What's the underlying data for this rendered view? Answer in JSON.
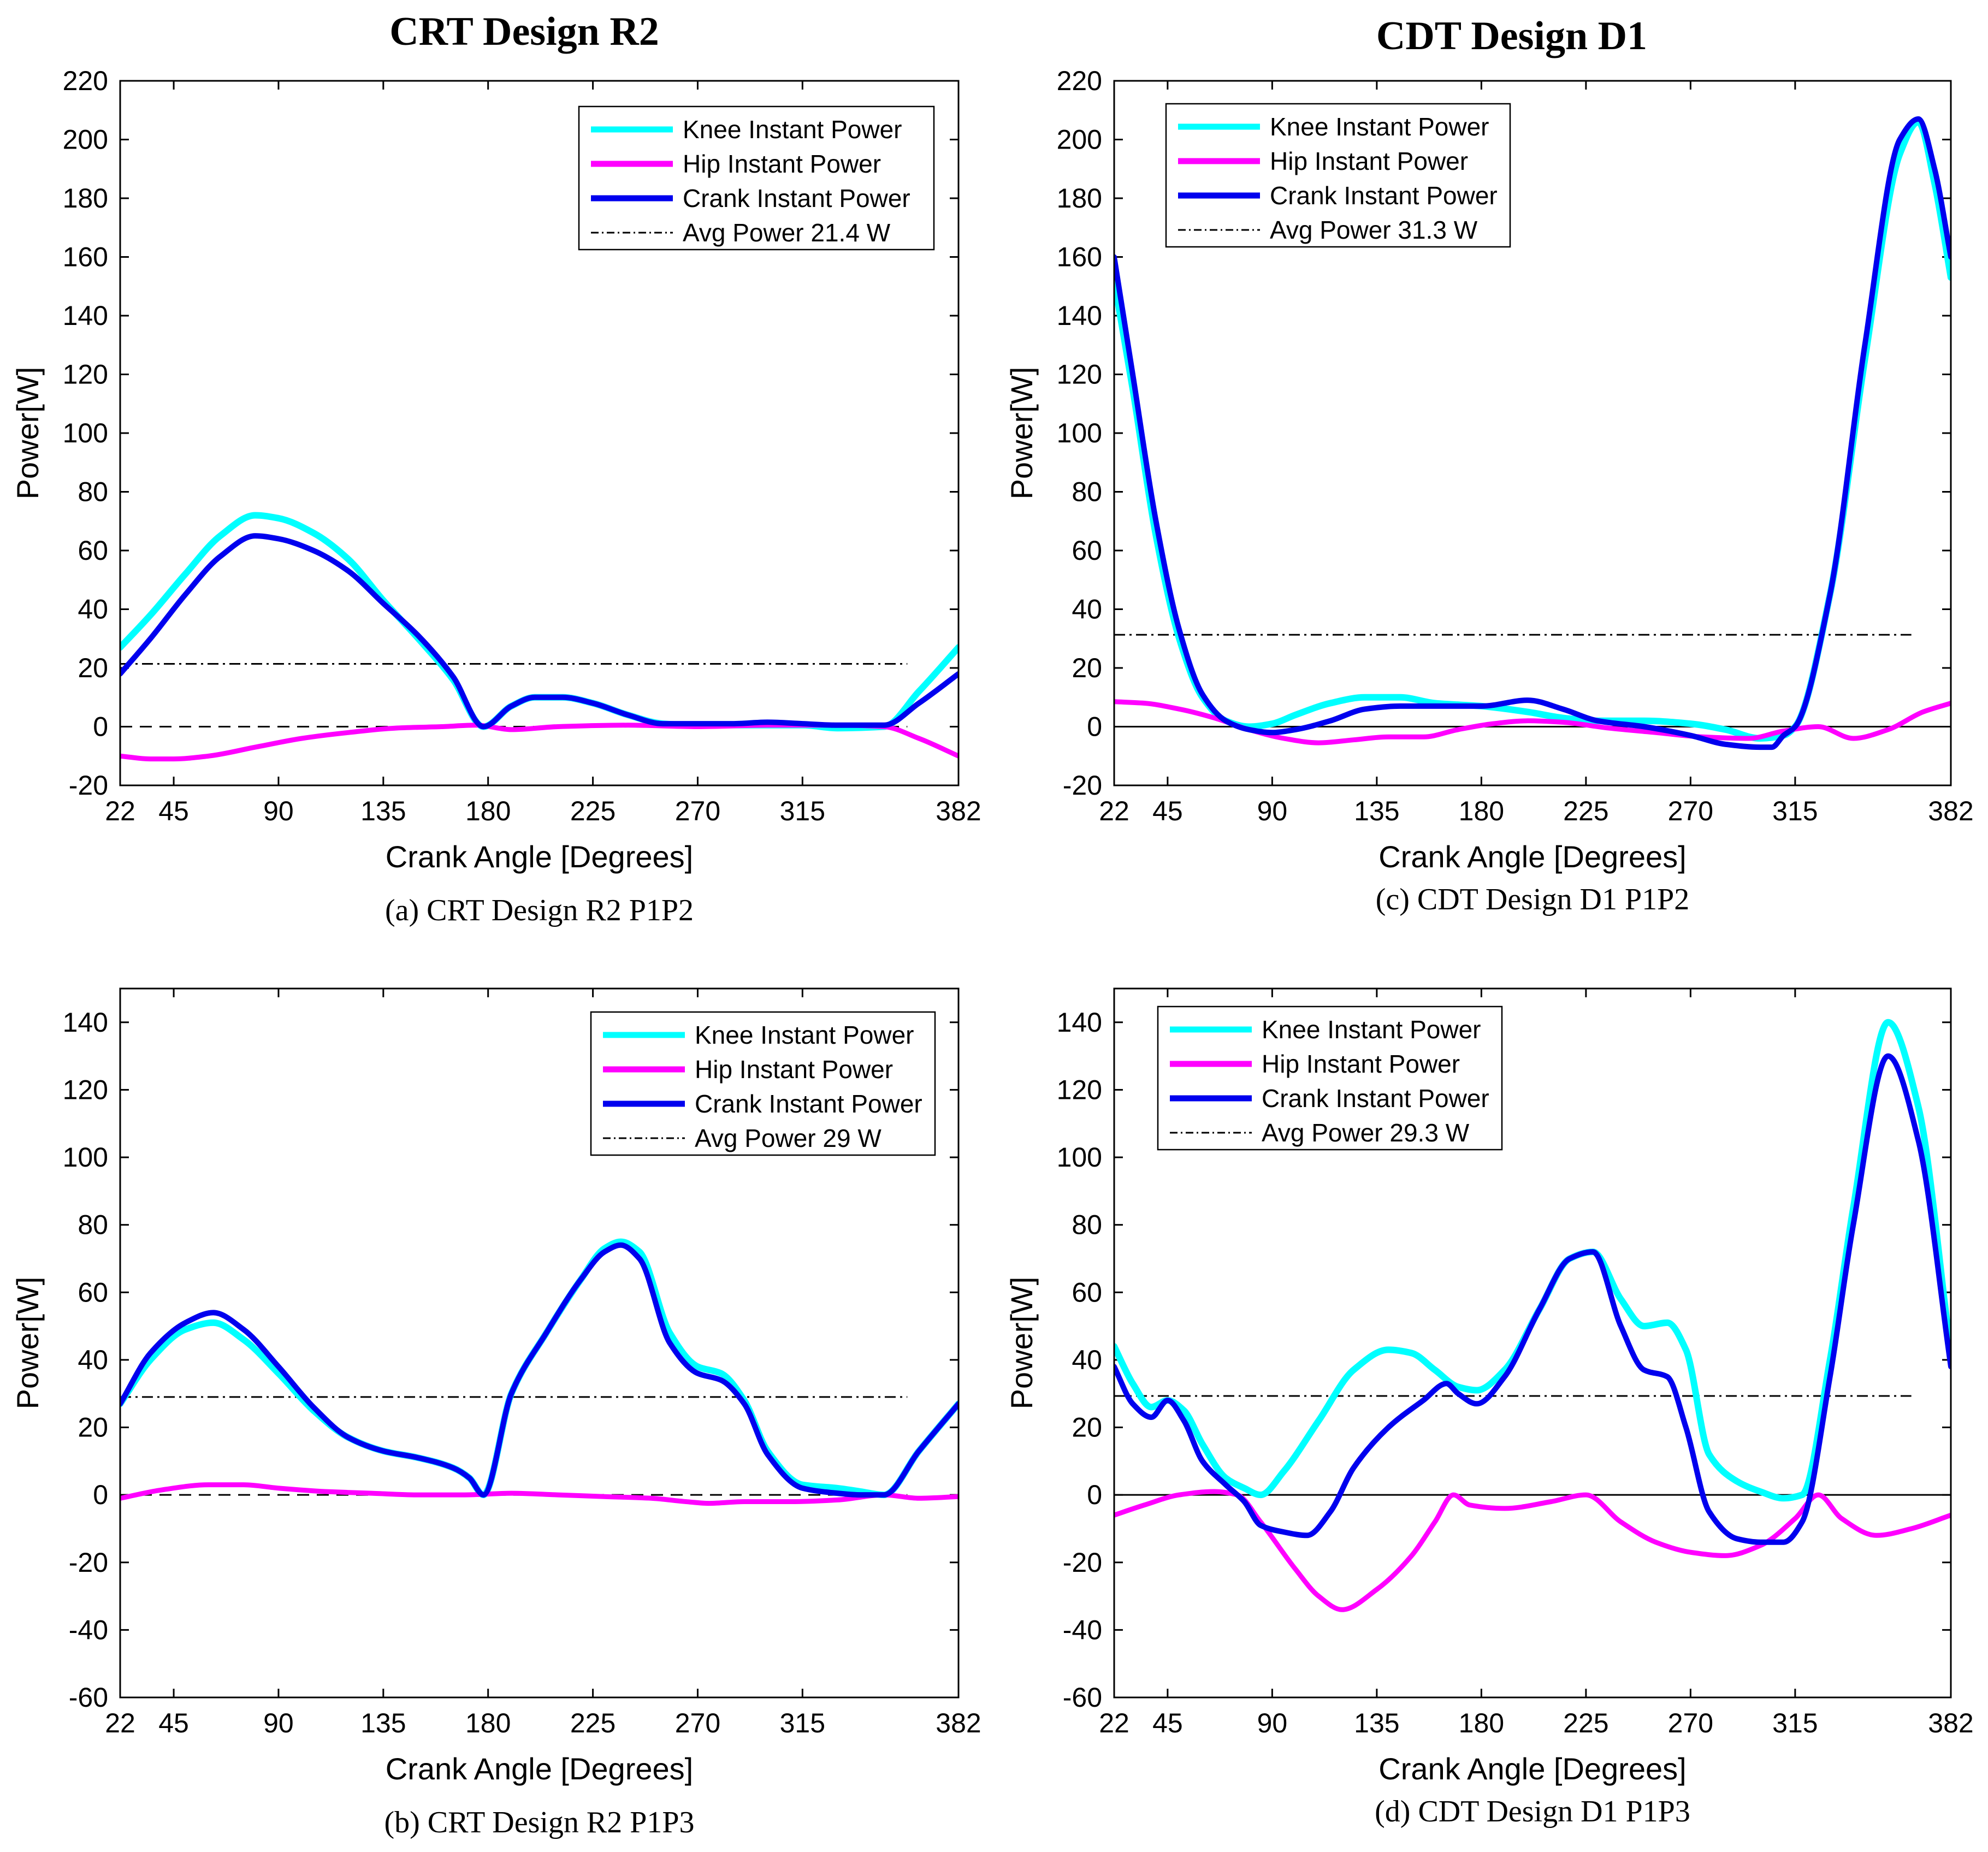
{
  "figure": {
    "column_titles": [
      "CRT Design R2",
      "CDT Design D1"
    ]
  },
  "chart_data": [
    {
      "type": "line",
      "panel": "a",
      "caption": "(a) CRT Design R2 P1P2",
      "xlabel": "Crank Angle [Degrees]",
      "ylabel": "Power[W]",
      "xlim": [
        22,
        382
      ],
      "ylim": [
        -20,
        220
      ],
      "xticks": [
        22,
        45,
        90,
        135,
        180,
        225,
        270,
        315,
        382
      ],
      "yticks": [
        -20,
        0,
        20,
        40,
        60,
        80,
        100,
        120,
        140,
        160,
        180,
        200,
        220
      ],
      "grid": false,
      "legend_position": "top-right",
      "zero_line": "dashed",
      "average": {
        "name": "Avg Power 21.4 W",
        "value": 21.4,
        "x_range": [
          22,
          360
        ]
      },
      "series": [
        {
          "name": "Knee Instant Power",
          "color": "#00ffff",
          "x": [
            22,
            35,
            50,
            65,
            80,
            90,
            105,
            120,
            135,
            150,
            165,
            178,
            190,
            200,
            212,
            225,
            240,
            255,
            270,
            285,
            300,
            315,
            330,
            350,
            365,
            382
          ],
          "y": [
            27,
            38,
            52,
            65,
            72,
            71,
            66,
            57,
            43,
            30,
            16,
            0,
            7,
            10,
            10,
            8,
            4,
            1,
            0.5,
            0.5,
            0.5,
            0.5,
            -0.5,
            0,
            12,
            27
          ]
        },
        {
          "name": "Hip Instant Power",
          "color": "#ff00ff",
          "x": [
            22,
            35,
            45,
            60,
            80,
            100,
            120,
            140,
            160,
            175,
            190,
            210,
            240,
            270,
            300,
            330,
            350,
            365,
            382
          ],
          "y": [
            -10,
            -11,
            -11,
            -10,
            -7,
            -4,
            -2,
            -0.5,
            0,
            0.5,
            -1,
            0,
            0.5,
            0,
            0.5,
            0.5,
            0,
            -4,
            -10
          ]
        },
        {
          "name": "Crank Instant Power",
          "color": "#0000ee",
          "x": [
            22,
            35,
            50,
            65,
            80,
            90,
            105,
            120,
            135,
            150,
            165,
            178,
            190,
            200,
            212,
            225,
            240,
            255,
            270,
            285,
            300,
            315,
            330,
            350,
            365,
            382
          ],
          "y": [
            18,
            30,
            45,
            58,
            65,
            64,
            60,
            53,
            42,
            31,
            17,
            0,
            7,
            10,
            10,
            8,
            4,
            1,
            1,
            1,
            1.5,
            1,
            0.5,
            0.5,
            8,
            18
          ]
        }
      ]
    },
    {
      "type": "line",
      "panel": "b",
      "caption": "(b) CRT Design R2 P1P3",
      "xlabel": "Crank Angle [Degrees]",
      "ylabel": "Power[W]",
      "xlim": [
        22,
        382
      ],
      "ylim": [
        -60,
        150
      ],
      "xticks": [
        22,
        45,
        90,
        135,
        180,
        225,
        270,
        315,
        382
      ],
      "yticks": [
        -60,
        -40,
        -20,
        0,
        20,
        40,
        60,
        80,
        100,
        120,
        140
      ],
      "grid": false,
      "legend_position": "top-right",
      "zero_line": "dashed",
      "average": {
        "name": "Avg Power 29 W",
        "value": 29,
        "x_range": [
          22,
          360
        ]
      },
      "series": [
        {
          "name": "Knee Instant Power",
          "color": "#00ffff",
          "x": [
            22,
            35,
            50,
            62,
            75,
            90,
            105,
            120,
            135,
            150,
            165,
            172,
            178,
            190,
            205,
            220,
            230,
            237,
            245,
            258,
            270,
            280,
            290,
            300,
            315,
            330,
            340,
            350,
            365,
            382
          ],
          "y": [
            27,
            40,
            49,
            51,
            46,
            36,
            25,
            17,
            13,
            11,
            8,
            5,
            0,
            30,
            48,
            64,
            73,
            75,
            72,
            48,
            38,
            36,
            28,
            13,
            3,
            2,
            1,
            0,
            13,
            27
          ]
        },
        {
          "name": "Hip Instant Power",
          "color": "#ff00ff",
          "x": [
            22,
            40,
            60,
            75,
            90,
            110,
            130,
            150,
            170,
            190,
            210,
            230,
            250,
            265,
            275,
            290,
            310,
            330,
            350,
            365,
            382
          ],
          "y": [
            -1,
            1.5,
            3,
            3,
            2,
            1,
            0.5,
            0,
            0,
            0.5,
            0,
            -0.5,
            -1,
            -2,
            -2.5,
            -2,
            -2,
            -1.5,
            0,
            -1,
            -0.5
          ]
        },
        {
          "name": "Crank Instant Power",
          "color": "#0000ee",
          "x": [
            22,
            35,
            50,
            62,
            75,
            90,
            105,
            120,
            135,
            150,
            165,
            172,
            178,
            190,
            205,
            220,
            230,
            237,
            245,
            258,
            270,
            280,
            290,
            300,
            315,
            330,
            340,
            350,
            365,
            382
          ],
          "y": [
            27,
            42,
            51,
            54,
            49,
            38,
            26,
            17,
            13,
            11,
            8,
            5,
            0,
            30,
            48,
            64,
            72,
            74,
            70,
            45,
            36,
            34,
            27,
            12,
            2,
            0.5,
            0,
            0,
            13,
            27
          ]
        }
      ]
    },
    {
      "type": "line",
      "panel": "c",
      "caption": "(c) CDT Design D1 P1P2",
      "xlabel": "Crank Angle [Degrees]",
      "ylabel": "Power[W]",
      "xlim": [
        22,
        382
      ],
      "ylim": [
        -20,
        220
      ],
      "xticks": [
        22,
        45,
        90,
        135,
        180,
        225,
        270,
        315,
        382
      ],
      "yticks": [
        -20,
        0,
        20,
        40,
        60,
        80,
        100,
        120,
        140,
        160,
        180,
        200,
        220
      ],
      "grid": false,
      "legend_position": "top-left",
      "zero_line": "solid",
      "average": {
        "name": "Avg Power 31.3 W",
        "value": 31.3,
        "x_range": [
          22,
          365
        ]
      },
      "series": [
        {
          "name": "Knee Instant Power",
          "color": "#00ffff",
          "x": [
            22,
            30,
            40,
            50,
            60,
            70,
            80,
            90,
            100,
            115,
            130,
            145,
            160,
            180,
            200,
            215,
            230,
            250,
            270,
            285,
            300,
            310,
            315,
            330,
            345,
            360,
            368,
            375,
            382
          ],
          "y": [
            152,
            115,
            65,
            30,
            10,
            2,
            0,
            1,
            4,
            8,
            10,
            10,
            8,
            7,
            5,
            3,
            2,
            2,
            1,
            -1,
            -4,
            -3,
            0,
            45,
            125,
            195,
            206,
            185,
            153
          ]
        },
        {
          "name": "Hip Instant Power",
          "color": "#ff00ff",
          "x": [
            22,
            35,
            50,
            65,
            80,
            95,
            110,
            125,
            140,
            155,
            170,
            185,
            200,
            215,
            235,
            255,
            275,
            295,
            310,
            325,
            340,
            355,
            370,
            382
          ],
          "y": [
            8.5,
            8,
            6,
            3,
            -1,
            -4,
            -5.5,
            -4.5,
            -3.5,
            -3.5,
            -1,
            1,
            2,
            1.5,
            -0.5,
            -2,
            -3.5,
            -4,
            -1.5,
            0,
            -4,
            -1,
            5,
            8
          ]
        },
        {
          "name": "Crank Instant Power",
          "color": "#0000ee",
          "x": [
            22,
            30,
            40,
            50,
            60,
            70,
            80,
            90,
            100,
            115,
            130,
            145,
            160,
            180,
            200,
            215,
            230,
            250,
            270,
            285,
            300,
            305,
            310,
            315,
            330,
            345,
            360,
            368,
            375,
            382
          ],
          "y": [
            160,
            120,
            70,
            33,
            11,
            2,
            -1,
            -2,
            -1,
            2,
            6,
            7,
            7,
            7,
            9,
            6,
            2,
            0,
            -3,
            -6,
            -7,
            -7,
            -3,
            0,
            45,
            130,
            200,
            207,
            190,
            160
          ]
        }
      ]
    },
    {
      "type": "line",
      "panel": "d",
      "caption": "(d) CDT Design D1 P1P3",
      "xlabel": "Crank Angle [Degrees]",
      "ylabel": "Power[W]",
      "xlim": [
        22,
        382
      ],
      "ylim": [
        -60,
        150
      ],
      "xticks": [
        22,
        45,
        90,
        135,
        180,
        225,
        270,
        315,
        382
      ],
      "yticks": [
        -60,
        -40,
        -20,
        0,
        20,
        40,
        60,
        80,
        100,
        120,
        140
      ],
      "grid": false,
      "legend_position": "top-left",
      "zero_line": "solid",
      "average": {
        "name": "Avg Power 29.3 W",
        "value": 29.3,
        "x_range": [
          22,
          365
        ]
      },
      "series": [
        {
          "name": "Knee Instant Power",
          "color": "#00ffff",
          "x": [
            22,
            30,
            38,
            45,
            52,
            60,
            70,
            78,
            85,
            95,
            110,
            125,
            140,
            150,
            160,
            170,
            178,
            190,
            205,
            218,
            228,
            240,
            250,
            260,
            268,
            278,
            290,
            300,
            310,
            318,
            330,
            340,
            355,
            368,
            382
          ],
          "y": [
            44,
            33,
            26,
            28,
            25,
            15,
            5,
            2,
            0,
            7,
            22,
            37,
            43,
            42,
            37,
            32,
            31,
            37,
            55,
            70,
            72,
            58,
            50,
            51,
            43,
            12,
            4,
            1,
            -1,
            0,
            40,
            85,
            140,
            115,
            42
          ]
        },
        {
          "name": "Hip Instant Power",
          "color": "#ff00ff",
          "x": [
            22,
            35,
            50,
            65,
            75,
            85,
            100,
            110,
            120,
            135,
            150,
            160,
            168,
            175,
            190,
            210,
            225,
            240,
            255,
            270,
            285,
            300,
            315,
            325,
            335,
            350,
            365,
            382
          ],
          "y": [
            -6,
            -3,
            0,
            1,
            0,
            -8,
            -22,
            -30,
            -34,
            -28,
            -18,
            -8,
            0,
            -3,
            -4,
            -2,
            0,
            -8,
            -14,
            -17,
            -18,
            -15,
            -7,
            0,
            -7,
            -12,
            -10,
            -6
          ]
        },
        {
          "name": "Crank Instant Power",
          "color": "#0000ee",
          "x": [
            22,
            30,
            38,
            45,
            52,
            60,
            70,
            78,
            85,
            95,
            105,
            115,
            125,
            140,
            155,
            165,
            170,
            178,
            190,
            205,
            218,
            228,
            240,
            250,
            260,
            268,
            278,
            290,
            300,
            310,
            318,
            330,
            340,
            355,
            368,
            382
          ],
          "y": [
            38,
            27,
            23,
            28,
            22,
            10,
            3,
            -2,
            -9,
            -11,
            -12,
            -5,
            8,
            20,
            28,
            33,
            30,
            27,
            35,
            55,
            70,
            72,
            50,
            37,
            35,
            20,
            -5,
            -13,
            -14,
            -14,
            -8,
            35,
            80,
            130,
            105,
            38
          ]
        }
      ]
    }
  ]
}
